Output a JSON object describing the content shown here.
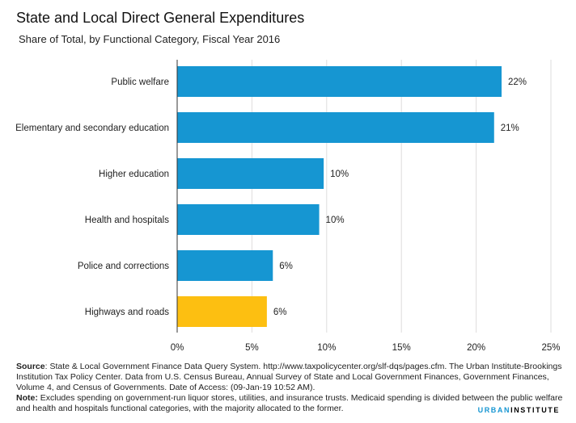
{
  "chart_data": {
    "type": "bar",
    "orientation": "horizontal",
    "title": "State and Local Direct General Expenditures",
    "subtitle": "Share of Total, by Functional  Category, Fiscal Year 2016",
    "xlabel": "",
    "ylabel": "",
    "xlim": [
      0,
      25
    ],
    "xticks": [
      0,
      5,
      10,
      15,
      20,
      25
    ],
    "xtick_labels": [
      "0%",
      "5%",
      "10%",
      "15%",
      "20%",
      "25%"
    ],
    "grid": true,
    "categories": [
      "Public welfare",
      "Elementary and secondary education",
      "Higher education",
      "Health and hospitals",
      "Police and corrections",
      "Highways and roads"
    ],
    "values": [
      21.7,
      21.2,
      9.8,
      9.5,
      6.4,
      6.0
    ],
    "data_labels": [
      "22%",
      "21%",
      "10%",
      "10%",
      "6%",
      "6%"
    ],
    "bar_colors": [
      "#1696d2",
      "#1696d2",
      "#1696d2",
      "#1696d2",
      "#1696d2",
      "#fdbf11"
    ]
  },
  "footer": {
    "source_label": "Source",
    "source_text": ": State & Local Government Finance Data Query System. http://www.taxpolicycenter.org/slf-dqs/pages.cfm. The Urban Institute-Brookings Institution Tax Policy Center. Data from U.S. Census Bureau, Annual Survey of State and Local Government Finances, Government Finances, Volume 4, and Census of Governments. Date of Access: (09-Jan-19 10:52 AM).",
    "note_label": "Note:",
    "note_text": " Excludes spending on government-run liquor stores, utilities, and insurance trusts. Medicaid spending is divided between the public welfare and health and hospitals functional categories, with the majority allocated to the former."
  },
  "logo": {
    "urban": "URBAN",
    "institute": "INSTITUTE"
  }
}
